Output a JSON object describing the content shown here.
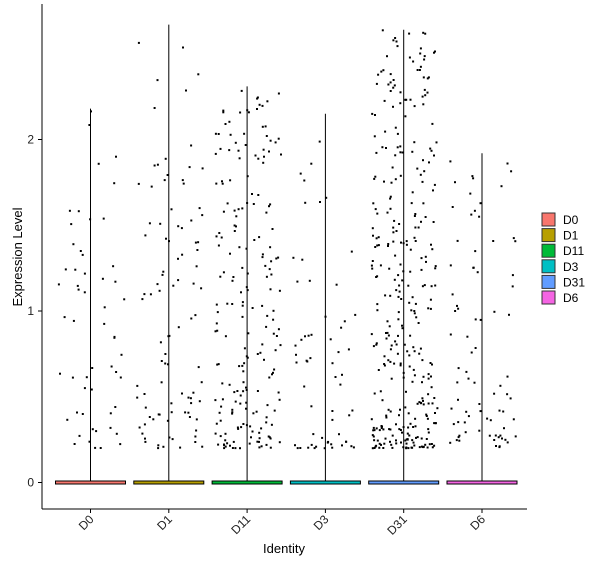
{
  "chart_data": {
    "type": "scatter",
    "subtype": "violin-with-jitter",
    "title": "",
    "xlabel": "Identity",
    "ylabel": "Expression Level",
    "categories": [
      "D0",
      "D1",
      "D11",
      "D3",
      "D31",
      "D6"
    ],
    "yticks": [
      "0",
      "1",
      "2"
    ],
    "ylim": [
      -0.15,
      2.8
    ],
    "grid": false,
    "legend_position": "right",
    "series": [
      {
        "name": "D0",
        "color": "#F8766D",
        "max": 2.18
      },
      {
        "name": "D1",
        "color": "#B79F00",
        "max": 2.67
      },
      {
        "name": "D11",
        "color": "#00BA38",
        "max": 2.31
      },
      {
        "name": "D3",
        "color": "#00BFC4",
        "max": 2.15
      },
      {
        "name": "D31",
        "color": "#619CFF",
        "max": 2.64
      },
      {
        "name": "D6",
        "color": "#F564E3",
        "max": 1.92
      }
    ]
  }
}
